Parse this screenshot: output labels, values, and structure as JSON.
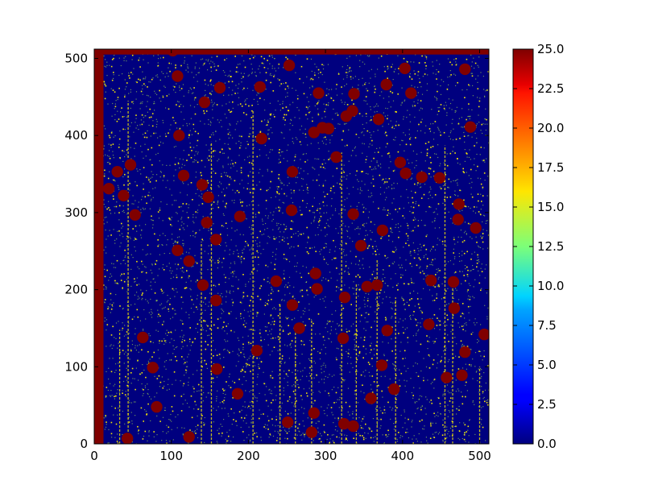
{
  "chart_data": [
    {
      "type": "heatmap",
      "title": "",
      "xlabel": "",
      "ylabel": "",
      "xlim": [
        0,
        512
      ],
      "ylim": [
        0,
        512
      ],
      "x_ticks": [
        0,
        100,
        200,
        300,
        400,
        500
      ],
      "y_ticks": [
        0,
        100,
        200,
        300,
        400,
        500
      ],
      "x_tick_labels": [
        "0",
        "100",
        "200",
        "300",
        "400",
        "500"
      ],
      "y_tick_labels": [
        "0",
        "100",
        "200",
        "300",
        "400",
        "500"
      ],
      "colormap": "jet",
      "value_range": [
        0,
        25
      ],
      "background_value": 0,
      "noise_value_approx": 14,
      "saturated_value": 25,
      "saturated_column_band": [
        0,
        12
      ],
      "saturated_top_row_band": [
        505,
        512
      ],
      "blobs": [
        [
          43,
          7
        ],
        [
          123,
          9
        ],
        [
          81,
          48
        ],
        [
          186,
          65
        ],
        [
          159,
          97
        ],
        [
          76,
          99
        ],
        [
          63,
          138
        ],
        [
          123,
          237
        ],
        [
          108,
          251
        ],
        [
          141,
          206
        ],
        [
          158,
          186
        ],
        [
          211,
          121
        ],
        [
          236,
          211
        ],
        [
          257,
          180
        ],
        [
          266,
          150
        ],
        [
          285,
          40
        ],
        [
          282,
          15
        ],
        [
          251,
          28
        ],
        [
          287,
          221
        ],
        [
          289,
          201
        ],
        [
          325,
          190
        ],
        [
          323,
          137
        ],
        [
          324,
          26
        ],
        [
          336,
          23
        ],
        [
          359,
          59
        ],
        [
          373,
          102
        ],
        [
          380,
          147
        ],
        [
          389,
          71
        ],
        [
          434,
          155
        ],
        [
          457,
          86
        ],
        [
          477,
          89
        ],
        [
          481,
          119
        ],
        [
          467,
          176
        ],
        [
          466,
          210
        ],
        [
          437,
          212
        ],
        [
          367,
          206
        ],
        [
          354,
          204
        ],
        [
          346,
          257
        ],
        [
          374,
          277
        ],
        [
          336,
          298
        ],
        [
          256,
          303
        ],
        [
          189,
          295
        ],
        [
          158,
          265
        ],
        [
          146,
          287
        ],
        [
          148,
          320
        ],
        [
          140,
          336
        ],
        [
          116,
          348
        ],
        [
          53,
          297
        ],
        [
          38,
          322
        ],
        [
          30,
          353
        ],
        [
          47,
          362
        ],
        [
          19,
          331
        ],
        [
          110,
          400
        ],
        [
          108,
          477
        ],
        [
          143,
          443
        ],
        [
          163,
          462
        ],
        [
          215,
          463
        ],
        [
          253,
          491
        ],
        [
          304,
          409
        ],
        [
          217,
          396
        ],
        [
          257,
          353
        ],
        [
          285,
          404
        ],
        [
          296,
          410
        ],
        [
          291,
          455
        ],
        [
          314,
          372
        ],
        [
          327,
          425
        ],
        [
          337,
          454
        ],
        [
          335,
          432
        ],
        [
          369,
          421
        ],
        [
          379,
          466
        ],
        [
          397,
          365
        ],
        [
          404,
          351
        ],
        [
          411,
          455
        ],
        [
          425,
          346
        ],
        [
          448,
          345
        ],
        [
          403,
          487
        ],
        [
          473,
          311
        ],
        [
          472,
          291
        ],
        [
          495,
          280
        ],
        [
          488,
          411
        ],
        [
          481,
          486
        ],
        [
          506,
          142
        ],
        [
          102,
          510
        ]
      ],
      "blob_radius": 7.5,
      "streaks": [
        {
          "x": 44,
          "y0": 0,
          "y1": 445
        },
        {
          "x": 206,
          "y0": 0,
          "y1": 432
        },
        {
          "x": 321,
          "y0": 0,
          "y1": 378
        },
        {
          "x": 455,
          "y0": 0,
          "y1": 387
        },
        {
          "x": 152,
          "y0": 0,
          "y1": 392
        },
        {
          "x": 33,
          "y0": 0,
          "y1": 148
        },
        {
          "x": 139,
          "y0": 0,
          "y1": 262
        },
        {
          "x": 241,
          "y0": 0,
          "y1": 182
        },
        {
          "x": 282,
          "y0": 0,
          "y1": 161
        },
        {
          "x": 367,
          "y0": 0,
          "y1": 240
        },
        {
          "x": 391,
          "y0": 0,
          "y1": 190
        },
        {
          "x": 500,
          "y0": 0,
          "y1": 100
        },
        {
          "x": 340,
          "y0": 0,
          "y1": 207
        },
        {
          "x": 261,
          "y0": 0,
          "y1": 144
        },
        {
          "x": 465,
          "y0": 0,
          "y1": 210
        }
      ]
    },
    {
      "type": "colorbar",
      "range": [
        0,
        25
      ],
      "ticks": [
        0,
        2.5,
        5,
        7.5,
        10,
        12.5,
        15,
        17.5,
        20,
        22.5,
        25
      ],
      "tick_labels": [
        "0.0",
        "2.5",
        "5.0",
        "7.5",
        "10.0",
        "12.5",
        "15.0",
        "17.5",
        "20.0",
        "22.5",
        "25.0"
      ]
    }
  ]
}
